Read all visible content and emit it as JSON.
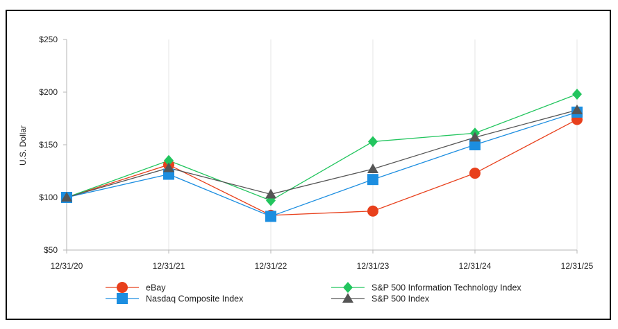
{
  "chart_data": {
    "type": "line",
    "title": "",
    "xlabel": "",
    "ylabel": "U.S. Dollar",
    "categories": [
      "12/31/20",
      "12/31/21",
      "12/31/22",
      "12/31/23",
      "12/31/24",
      "12/31/25"
    ],
    "y_ticks": [
      "$50",
      "$100",
      "$150",
      "$200",
      "$250"
    ],
    "ylim": [
      50,
      250
    ],
    "grid": "vertical",
    "legend_placement": "bottom",
    "series": [
      {
        "name": "eBay",
        "color": "#e8401c",
        "marker": "circle",
        "values": [
          100,
          131,
          83,
          87,
          123,
          174
        ]
      },
      {
        "name": "S&P 500 Information Technology Index",
        "color": "#22c55e",
        "marker": "diamond",
        "values": [
          100,
          135,
          97,
          153,
          161,
          198
        ]
      },
      {
        "name": "Nasdaq Composite Index",
        "color": "#1c8ee0",
        "marker": "square",
        "values": [
          100,
          122,
          82,
          117,
          150,
          181
        ]
      },
      {
        "name": "S&P 500 Index",
        "color": "#555555",
        "marker": "triangle",
        "values": [
          100,
          128,
          103,
          127,
          157,
          183
        ]
      }
    ]
  }
}
